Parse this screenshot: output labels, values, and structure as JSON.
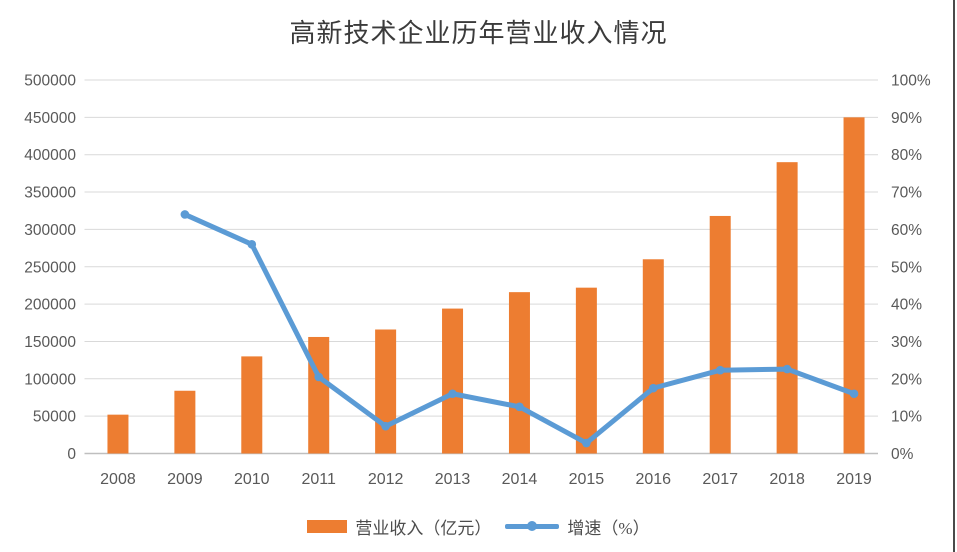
{
  "title": "高新技术企业历年营业收入情况",
  "colors": {
    "bar": "#ED7D31",
    "line": "#5B9BD5",
    "gridline": "#D9D9D9",
    "axis_line": "#BFBFBF",
    "tick_text": "#595959",
    "title_text": "#3b3b3b",
    "frame_border": "#4a4a4a"
  },
  "chart_data": {
    "type": "bar+line combo",
    "title": "高新技术企业历年营业收入情况",
    "categories": [
      "2008",
      "2009",
      "2010",
      "2011",
      "2012",
      "2013",
      "2014",
      "2015",
      "2016",
      "2017",
      "2018",
      "2019"
    ],
    "series": [
      {
        "name": "营业收入（亿元）",
        "type": "bar",
        "axis": "left",
        "color": "#ED7D31",
        "values": [
          52000,
          84000,
          130000,
          156000,
          166000,
          194000,
          216000,
          222000,
          260000,
          318000,
          390000,
          450000
        ]
      },
      {
        "name": "增速（%）",
        "type": "line",
        "axis": "right",
        "color": "#5B9BD5",
        "values": [
          null,
          64,
          56,
          20.5,
          7.3,
          16,
          12.5,
          2.8,
          17.5,
          22.3,
          22.6,
          16
        ]
      }
    ],
    "y_axis_left": {
      "min": 0,
      "max": 500000,
      "step": 50000,
      "ticks": [
        "0",
        "50000",
        "100000",
        "150000",
        "200000",
        "250000",
        "300000",
        "350000",
        "400000",
        "450000",
        "500000"
      ]
    },
    "y_axis_right": {
      "min": 0,
      "max": 100,
      "step": 10,
      "ticks": [
        "0%",
        "10%",
        "20%",
        "30%",
        "40%",
        "50%",
        "60%",
        "70%",
        "80%",
        "90%",
        "100%"
      ]
    },
    "grid": true,
    "legend_position": "bottom"
  }
}
